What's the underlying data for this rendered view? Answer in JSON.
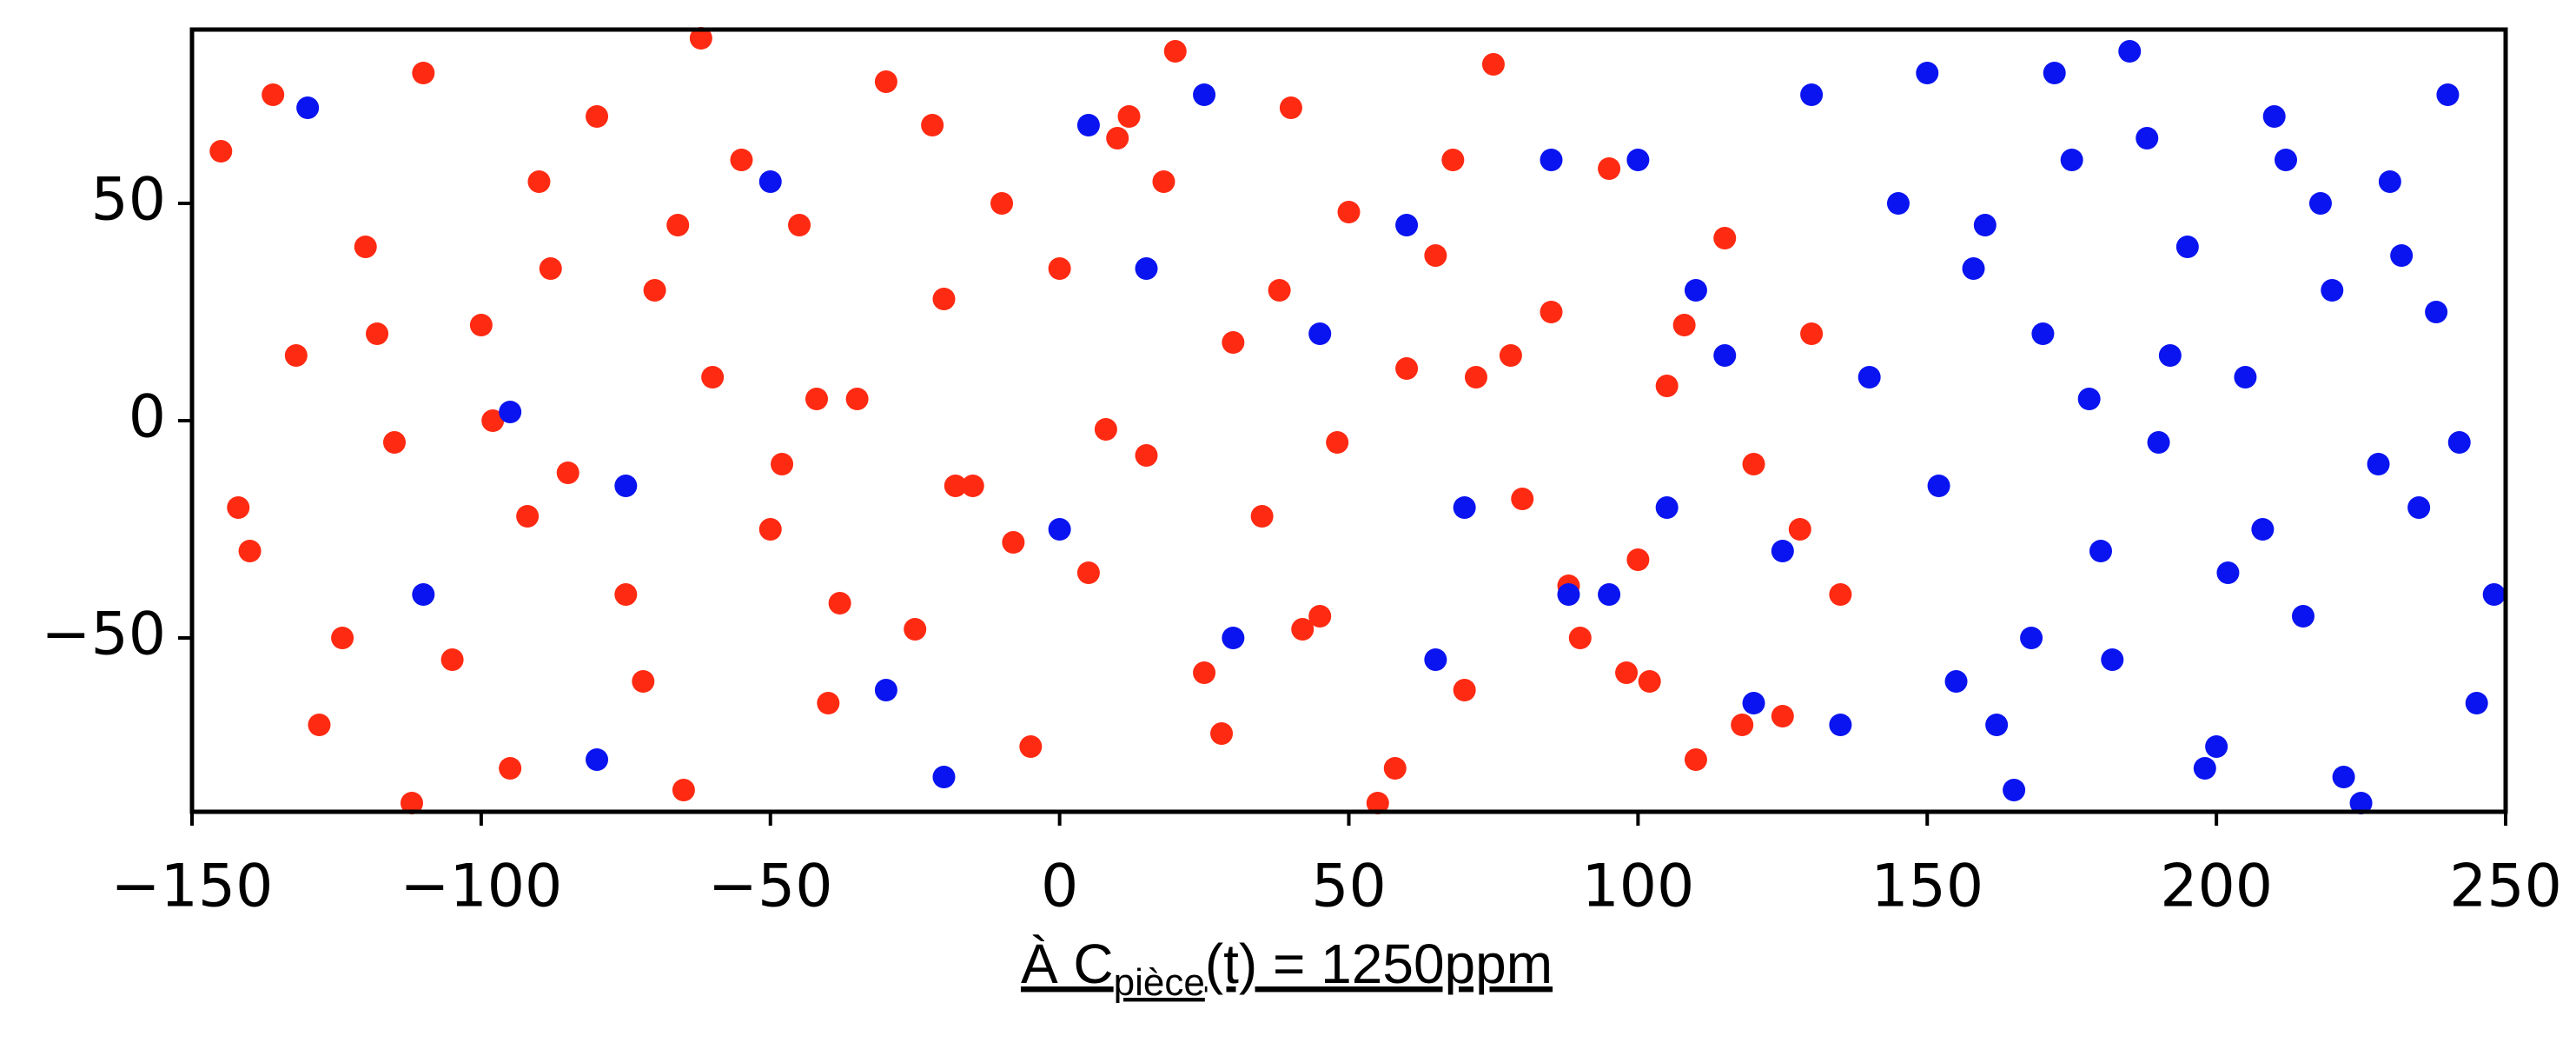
{
  "chart_data": {
    "type": "scatter",
    "xlim": [
      -150,
      250
    ],
    "ylim": [
      -90,
      90
    ],
    "xticks": [
      {
        "value": -150,
        "label": "−150"
      },
      {
        "value": -100,
        "label": "−100"
      },
      {
        "value": -50,
        "label": "−50"
      },
      0,
      50,
      100,
      150,
      200,
      250
    ],
    "yticks": [
      {
        "value": -50,
        "label": "−50"
      },
      0,
      50
    ],
    "xlabel": "À C",
    "xlabel_subscript": "pièce",
    "xlabel_suffix": "(t) = 1250ppm",
    "series": [
      {
        "color": "#ff2a12",
        "x": [
          -145,
          -140,
          -132,
          -128,
          -120,
          -115,
          -110,
          -105,
          -100,
          -95,
          -90,
          -85,
          -80,
          -75,
          -70,
          -65,
          -60,
          -55,
          -50,
          -45,
          -40,
          -35,
          -30,
          -25,
          -20,
          -15,
          -10,
          -5,
          0,
          5,
          10,
          15,
          20,
          25,
          30,
          35,
          40,
          45,
          50,
          55,
          60,
          65,
          70,
          75,
          80,
          85,
          90,
          95,
          100,
          105,
          110,
          115,
          120,
          125,
          130,
          135,
          -142,
          -136,
          -124,
          -112,
          -98,
          -88,
          -72,
          -62,
          -48,
          -38,
          -22,
          -8,
          8,
          18,
          28,
          38,
          48,
          58,
          68,
          78,
          88,
          98,
          108,
          118,
          128,
          -118,
          -92,
          -66,
          -42,
          -18,
          12,
          42,
          72,
          102
        ],
        "values": [
          62,
          -30,
          15,
          -70,
          40,
          -5,
          80,
          -55,
          22,
          -80,
          55,
          -12,
          70,
          -40,
          30,
          -85,
          10,
          60,
          -25,
          45,
          -65,
          5,
          78,
          -48,
          28,
          -15,
          50,
          -75,
          35,
          -35,
          65,
          -8,
          85,
          -58,
          18,
          -22,
          72,
          -45,
          48,
          -88,
          12,
          38,
          -62,
          82,
          -18,
          25,
          -50,
          58,
          -32,
          8,
          -78,
          42,
          -10,
          -68,
          20,
          -40,
          -20,
          75,
          -50,
          -88,
          0,
          35,
          -60,
          88,
          -10,
          -42,
          68,
          -28,
          -2,
          55,
          -72,
          30,
          -5,
          -80,
          60,
          15,
          -38,
          -58,
          22,
          -70,
          -25,
          20,
          -22,
          45,
          5,
          -15,
          70,
          -48,
          10,
          -60
        ]
      },
      {
        "color": "#0a14f0",
        "x": [
          150,
          155,
          160,
          165,
          170,
          175,
          180,
          185,
          190,
          195,
          200,
          205,
          210,
          215,
          220,
          225,
          230,
          235,
          240,
          245,
          152,
          158,
          168,
          178,
          188,
          198,
          208,
          218,
          228,
          238,
          248,
          162,
          172,
          182,
          192,
          202,
          212,
          222,
          232,
          242,
          130,
          120,
          110,
          95,
          85,
          70,
          60,
          45,
          30,
          15,
          0,
          -20,
          -50,
          -80,
          -110,
          -130,
          -95,
          -75,
          -30,
          5,
          25,
          65,
          88,
          105,
          140,
          145,
          135,
          125,
          115,
          100
        ],
        "values": [
          80,
          -60,
          45,
          -85,
          20,
          60,
          -30,
          85,
          -5,
          40,
          -75,
          10,
          70,
          -45,
          30,
          -88,
          55,
          -20,
          75,
          -65,
          -15,
          35,
          -50,
          5,
          65,
          -80,
          -25,
          50,
          -10,
          25,
          -40,
          -70,
          80,
          -55,
          15,
          -35,
          60,
          -82,
          38,
          -5,
          75,
          -65,
          30,
          -40,
          60,
          -20,
          45,
          20,
          -50,
          35,
          -25,
          -82,
          55,
          -78,
          -40,
          72,
          2,
          -15,
          -62,
          68,
          75,
          -55,
          -40,
          -20,
          10,
          50,
          -70,
          -30,
          15,
          60
        ]
      }
    ]
  }
}
